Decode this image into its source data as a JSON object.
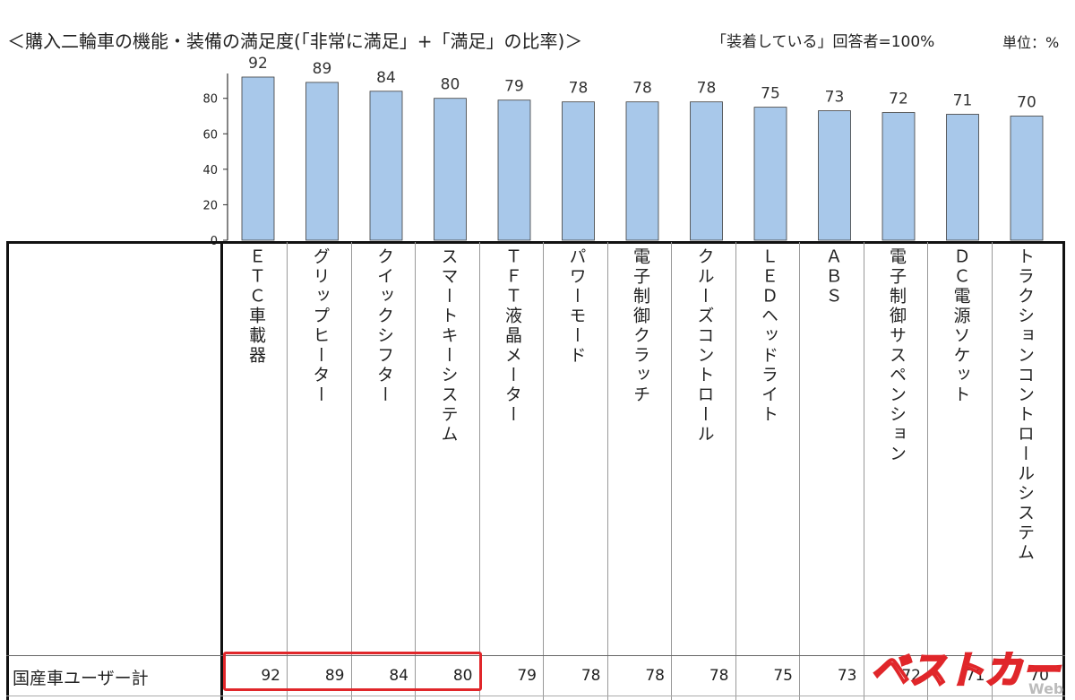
{
  "header": {
    "title": "＜購入二輪車の機能・装備の満足度(「非常に満足」+「満足」の比率)＞",
    "respondents": "「装着している」回答者=100%",
    "unit": "単位：%"
  },
  "table": {
    "row_label": "国産車ユーザー計",
    "highlight_color": "#e0262a"
  },
  "watermark": {
    "text": "ベストカー",
    "suffix": "Web"
  },
  "colors": {
    "bar_fill": "#a8c8ea",
    "bar_stroke": "#3c3c3c"
  },
  "chart_data": {
    "type": "bar",
    "categories": [
      "ＥＴＣ車載器",
      "グリップヒーター",
      "クイックシフター",
      "スマートキーシステム",
      "ＴＦＴ液晶メーター",
      "パワーモード",
      "電子制御クラッチ",
      "クルーズコントロール",
      "ＬＥＤヘッドライト",
      "ＡＢＳ",
      "電子制御サスペンション",
      "ＤＣ電源ソケット",
      "トラクションコントロールシステム"
    ],
    "values": [
      92,
      89,
      84,
      80,
      79,
      78,
      78,
      78,
      75,
      73,
      72,
      71,
      70
    ],
    "yticks": [
      0,
      20,
      40,
      60,
      80
    ],
    "ylim": [
      0,
      93
    ],
    "grid": false,
    "title": "",
    "xlabel": "",
    "ylabel": ""
  }
}
